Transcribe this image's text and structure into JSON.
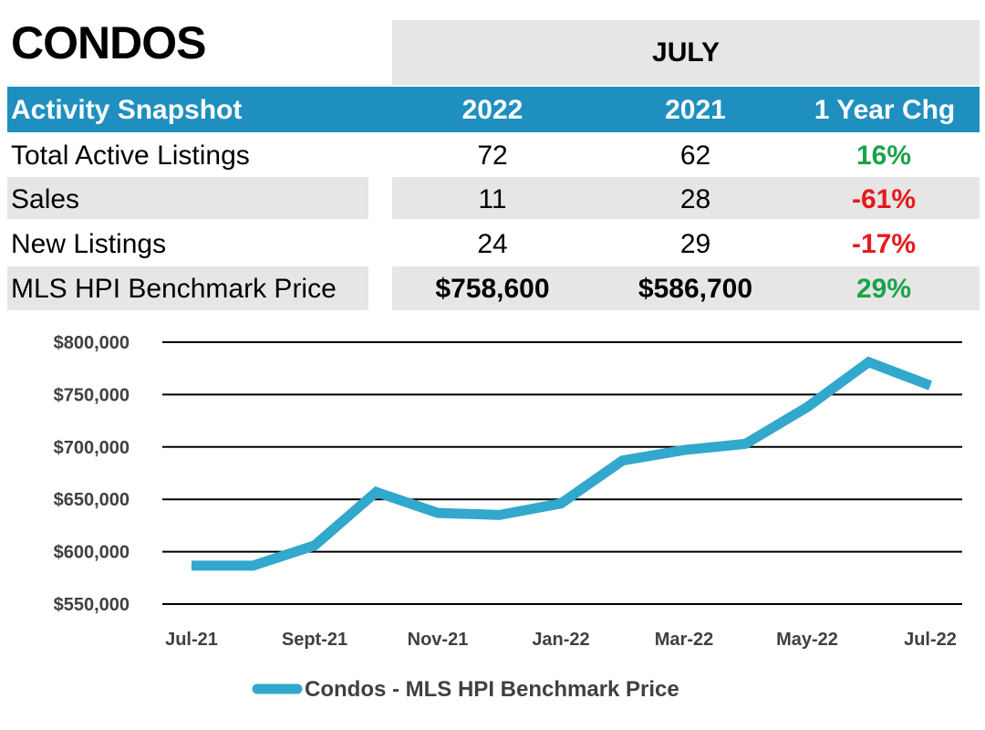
{
  "title": "CONDOS",
  "month": "JULY",
  "table": {
    "headers": [
      "Activity Snapshot",
      "2022",
      "2021",
      "1 Year Chg"
    ],
    "rows": [
      {
        "label": "Total Active Listings",
        "y2022": "72",
        "y2021": "62",
        "chg": "16%",
        "dir": "pos"
      },
      {
        "label": "Sales",
        "y2022": "11",
        "y2021": "28",
        "chg": "-61%",
        "dir": "neg"
      },
      {
        "label": "New Listings",
        "y2022": "24",
        "y2021": "29",
        "chg": "-17%",
        "dir": "neg"
      },
      {
        "label": "MLS HPI Benchmark Price",
        "y2022": "$758,600",
        "y2021": "$586,700",
        "chg": "29%",
        "dir": "pos"
      }
    ]
  },
  "colors": {
    "header_blue": "#1f8fbf",
    "line": "#31a8cc",
    "positive": "#1aa34a",
    "negative": "#e8191c",
    "shade": "#e6e6e6"
  },
  "chart_data": {
    "type": "line",
    "x": [
      "Jul-21",
      "Aug-21",
      "Sept-21",
      "Oct-21",
      "Nov-21",
      "Dec-21",
      "Jan-22",
      "Feb-22",
      "Mar-22",
      "Apr-22",
      "May-22",
      "Jun-22",
      "Jul-22"
    ],
    "tick_labels": [
      "Jul-21",
      "Sept-21",
      "Nov-21",
      "Jan-22",
      "Mar-22",
      "May-22",
      "Jul-22"
    ],
    "series": [
      {
        "name": "Condos - MLS HPI Benchmark Price",
        "values": [
          586700,
          586700,
          606000,
          657000,
          637000,
          635000,
          646000,
          687000,
          697000,
          703000,
          738000,
          781000,
          758600
        ]
      }
    ],
    "ylim": [
      550000,
      800000
    ],
    "yticks": [
      "$550,000",
      "$600,000",
      "$650,000",
      "$700,000",
      "$750,000",
      "$800,000"
    ],
    "ytick_values": [
      550000,
      600000,
      650000,
      700000,
      750000,
      800000
    ],
    "grid": true,
    "legend": "bottom-center"
  }
}
